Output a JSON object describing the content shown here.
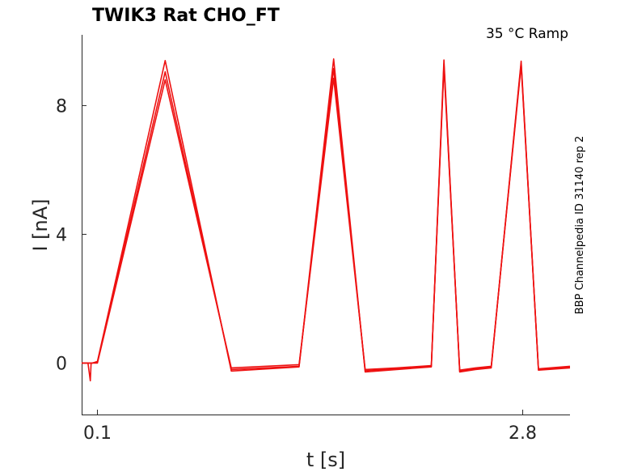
{
  "chart_data": {
    "type": "line",
    "title": "TWIK3  Rat  CHO_FT",
    "condition": "35 °C  Ramp",
    "side_label": "BBP Channelpedia ID 31140 rep 2",
    "xlabel": "t [s]",
    "ylabel": "I [nA]",
    "xlim": [
      0.0,
      3.1
    ],
    "ylim": [
      -1.6,
      10.2
    ],
    "xticks": [
      {
        "value": 0.1,
        "label": "0.1"
      },
      {
        "value": 2.8,
        "label": "2.8"
      }
    ],
    "yticks": [
      {
        "value": 0,
        "label": "0"
      },
      {
        "value": 4,
        "label": "4"
      },
      {
        "value": 8,
        "label": "8"
      }
    ],
    "grid": false,
    "color": "#ee1111",
    "series": [
      {
        "x": [
          0.0,
          0.04,
          0.055,
          0.06,
          0.07,
          0.1,
          0.53,
          0.95,
          1.38,
          1.6,
          1.8,
          2.0,
          2.22,
          2.3,
          2.4,
          2.5,
          2.6,
          2.79,
          2.9,
          3.1
        ],
        "y": [
          0.0,
          0.0,
          -0.55,
          0.0,
          0.0,
          0.05,
          9.4,
          -0.25,
          -0.12,
          9.45,
          -0.28,
          -0.2,
          -0.12,
          9.42,
          -0.28,
          -0.2,
          -0.15,
          9.38,
          -0.22,
          -0.15
        ]
      },
      {
        "x": [
          0.0,
          0.04,
          0.06,
          0.1,
          0.53,
          0.95,
          1.38,
          1.6,
          1.8,
          2.0,
          2.22,
          2.3,
          2.4,
          2.5,
          2.6,
          2.79,
          2.9,
          3.1
        ],
        "y": [
          0.0,
          0.0,
          0.0,
          0.02,
          9.05,
          -0.2,
          -0.1,
          9.15,
          -0.24,
          -0.18,
          -0.1,
          9.3,
          -0.25,
          -0.18,
          -0.12,
          9.32,
          -0.2,
          -0.12
        ]
      },
      {
        "x": [
          0.0,
          0.04,
          0.06,
          0.1,
          0.53,
          0.95,
          1.38,
          1.6,
          1.8,
          2.0,
          2.22,
          2.3,
          2.4,
          2.5,
          2.6,
          2.79,
          2.9,
          3.1
        ],
        "y": [
          0.0,
          0.0,
          0.0,
          0.0,
          8.8,
          -0.15,
          -0.05,
          8.85,
          -0.2,
          -0.15,
          -0.08,
          9.2,
          -0.22,
          -0.15,
          -0.1,
          9.25,
          -0.18,
          -0.1
        ]
      }
    ]
  }
}
